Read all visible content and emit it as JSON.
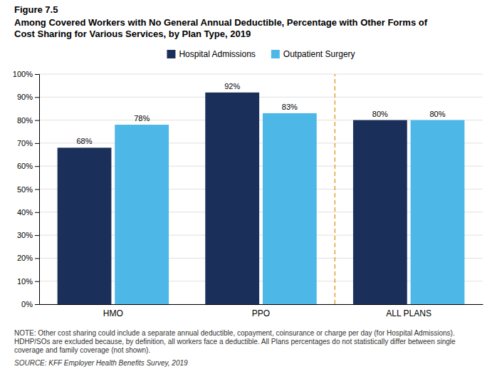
{
  "chart_data": {
    "type": "bar",
    "title": "Among Covered Workers with No General Annual Deductible, Percentage with Other Forms of\nCost Sharing for Various Services, by Plan Type, 2019",
    "categories": [
      "HMO",
      "PPO",
      "ALL PLANS"
    ],
    "series": [
      {
        "name": "Hospital Admissions",
        "color": "#1a2f5a",
        "values": [
          68,
          92,
          80
        ],
        "value_labels": [
          "68%",
          "92%",
          "80%"
        ]
      },
      {
        "name": "Outpatient Surgery",
        "color": "#4db8e8",
        "values": [
          78,
          83,
          80
        ],
        "value_labels": [
          "78%",
          "83%",
          "80%"
        ]
      }
    ],
    "ylim": [
      0,
      100
    ],
    "yticks": [
      {
        "value": 0,
        "label": "0%"
      },
      {
        "value": 10,
        "label": "10%"
      },
      {
        "value": 20,
        "label": "20%"
      },
      {
        "value": 30,
        "label": "30%"
      },
      {
        "value": 40,
        "label": "40%"
      },
      {
        "value": 50,
        "label": "50%"
      },
      {
        "value": 60,
        "label": "60%"
      },
      {
        "value": 70,
        "label": "70%"
      },
      {
        "value": 80,
        "label": "80%"
      },
      {
        "value": 90,
        "label": "90%"
      },
      {
        "value": 100,
        "label": "100%"
      }
    ],
    "grid": true,
    "legend": "top",
    "data_labels": true,
    "annotations": [
      {
        "text": "Figure 7.5"
      },
      {
        "type": "vline",
        "after": "PPO",
        "color": "#e8a030",
        "line_style": "dashed"
      },
      {
        "text": "NOTE: Other cost sharing could include a separate annual deductible, copayment, coinsurance or charge per day (for Hospital Admissions). HDHP/SOs are\nexcluded because, by definition, all workers face a deductible. All Plans percentages do not statistically differ between single coverage and family\ncoverage (not shown)."
      },
      {
        "text": "SOURCE: KFF Employer Health Benefits Survey, 2019"
      }
    ]
  }
}
